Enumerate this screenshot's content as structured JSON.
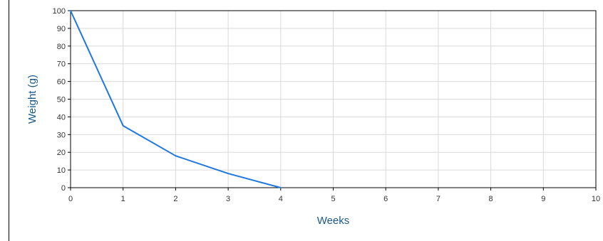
{
  "chart_data": {
    "type": "line",
    "title": "",
    "xlabel": "Weeks",
    "ylabel": "Weight (g)",
    "xlim": [
      0,
      10
    ],
    "ylim": [
      0,
      100
    ],
    "x_ticks": [
      "0",
      "1",
      "2",
      "3",
      "4",
      "5",
      "6",
      "7",
      "8",
      "9",
      "10"
    ],
    "y_ticks": [
      "0",
      "10",
      "20",
      "30",
      "40",
      "50",
      "60",
      "70",
      "80",
      "90",
      "100"
    ],
    "grid": true,
    "series": [
      {
        "x": [
          0,
          1,
          2,
          3,
          4
        ],
        "values": [
          100,
          35,
          18,
          8,
          0
        ],
        "color": "#1f77e0"
      }
    ],
    "colors": {
      "line": "#1f77e0",
      "axis_title": "#1a5a8a",
      "grid": "#d9d9d9"
    }
  }
}
